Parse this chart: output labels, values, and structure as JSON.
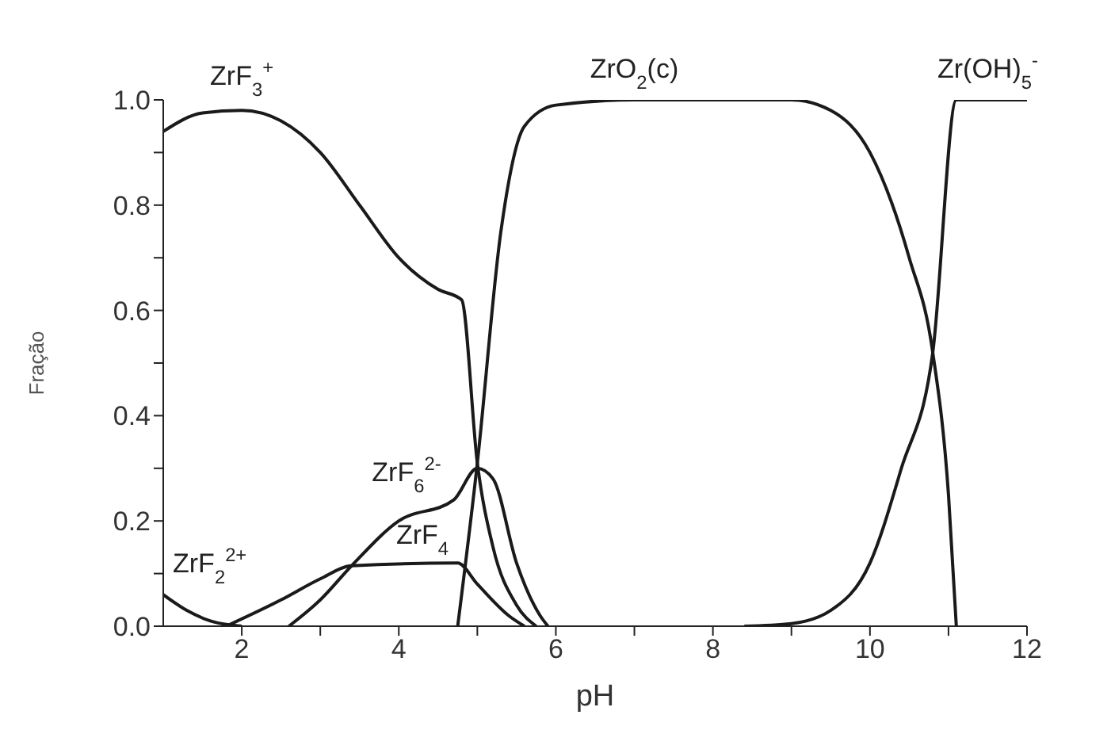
{
  "chart_data": {
    "type": "line",
    "xlabel": "pH",
    "ylabel": "Fração",
    "xlim": [
      1,
      12
    ],
    "xticks": [
      2,
      {
        "value": 3,
        "label": null
      },
      4,
      {
        "value": 5,
        "label": null
      },
      6,
      {
        "value": 7,
        "label": null
      },
      8,
      {
        "value": 9,
        "label": null
      },
      10,
      {
        "value": 11,
        "label": null
      },
      12
    ],
    "ylim": [
      0,
      1
    ],
    "yticks": [
      {
        "value": 0,
        "label": "0.0"
      },
      {
        "value": 0.1,
        "label": null
      },
      {
        "value": 0.2,
        "label": "0.2"
      },
      {
        "value": 0.3,
        "label": null
      },
      {
        "value": 0.4,
        "label": "0.4"
      },
      {
        "value": 0.5,
        "label": null
      },
      {
        "value": 0.6,
        "label": "0.6"
      },
      {
        "value": 0.7,
        "label": null
      },
      {
        "value": 0.8,
        "label": "0.8"
      },
      {
        "value": 0.9,
        "label": null
      },
      {
        "value": 1,
        "label": "1.0"
      }
    ],
    "grid": false,
    "legend": false,
    "marker": "none",
    "line_style": "solid",
    "series": [
      {
        "color": "#1a1a1a",
        "x": [
          1,
          1.5,
          2,
          2.5,
          3,
          3.5,
          4,
          4.5,
          4.8,
          5,
          5.2,
          5.5,
          5.75
        ],
        "values": [
          0.94,
          0.975,
          0.98,
          0.96,
          0.9,
          0.8,
          0.7,
          0.64,
          0.62,
          0.31,
          0.15,
          0.04,
          0
        ]
      },
      {
        "color": "#1a1a1a",
        "x": [
          4.75,
          5,
          5.3,
          5.6,
          6,
          7,
          9,
          9.5,
          10,
          10.5,
          10.8,
          11,
          11.1
        ],
        "values": [
          0,
          0.31,
          0.75,
          0.95,
          0.99,
          1,
          1,
          0.98,
          0.9,
          0.7,
          0.52,
          0.25,
          0
        ]
      },
      {
        "color": "#1a1a1a",
        "x": [
          8.4,
          9,
          9.5,
          10,
          10.4,
          10.8,
          11.1,
          12
        ],
        "values": [
          0,
          0.005,
          0.03,
          0.12,
          0.3,
          0.52,
          1,
          1
        ]
      },
      {
        "color": "#1a1a1a",
        "x": [
          1,
          1.3,
          1.6,
          2
        ],
        "values": [
          0.06,
          0.03,
          0.01,
          0
        ]
      },
      {
        "color": "#1a1a1a",
        "x": [
          1.8,
          2.5,
          3,
          3.4,
          4.75,
          5,
          5.4,
          5.6
        ],
        "values": [
          0,
          0.05,
          0.09,
          0.115,
          0.12,
          0.08,
          0.02,
          0
        ]
      },
      {
        "color": "#1a1a1a",
        "x": [
          2.6,
          3,
          3.4,
          4,
          4.7,
          5,
          5.2,
          5.5,
          5.8,
          5.9
        ],
        "values": [
          0,
          0.05,
          0.115,
          0.2,
          0.24,
          0.3,
          0.28,
          0.12,
          0.02,
          0
        ]
      }
    ],
    "annotations": [
      {
        "text": "ZrF$_{3}$$^{+}$",
        "x": 2,
        "y": 0.98
      },
      {
        "text": "ZrO$_{2}$(c)",
        "x": 7,
        "y": 1
      },
      {
        "text": "Zr(OH)$_{5}$$^{-}$",
        "x": 11.5,
        "y": 1
      },
      {
        "text": "ZrF$_{6}$$^{2-}$",
        "x": 4.7,
        "y": 0.24
      },
      {
        "text": "ZrF$_{4}$",
        "x": 4.3,
        "y": 0.12
      },
      {
        "text": "ZrF$_{2}$$^{2+}$",
        "x": 1,
        "y": 0.06
      }
    ]
  }
}
